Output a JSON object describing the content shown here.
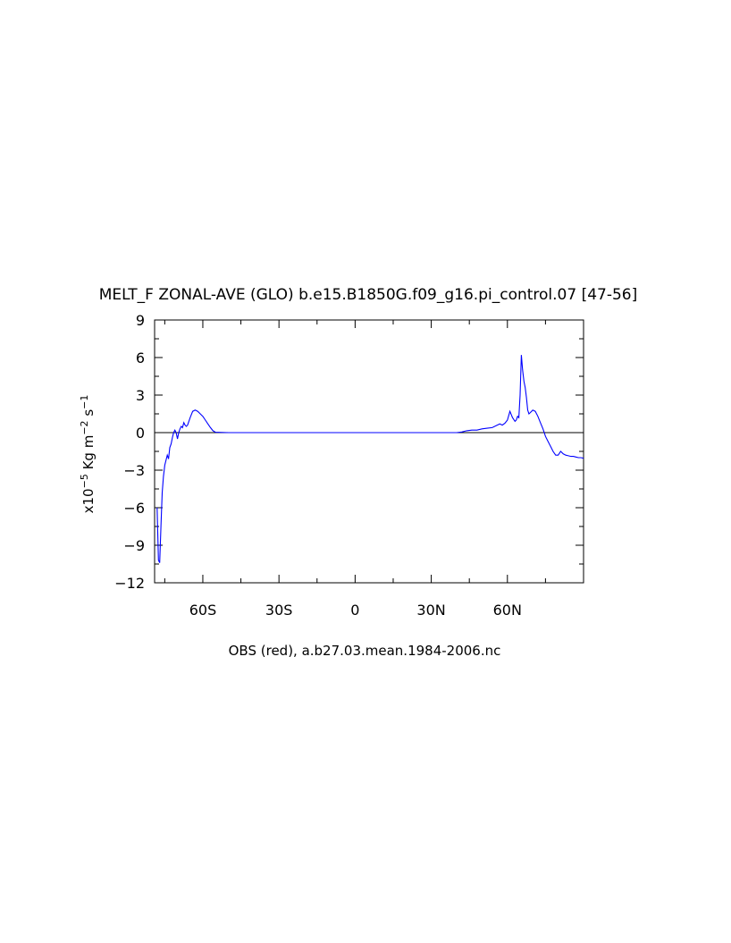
{
  "chart_data": {
    "type": "line",
    "title": "MELT_F ZONAL-AVE (GLO) b.e15.B1850G.f09_g16.pi_control.07 [47-56]",
    "xlabel": "OBS (red), a.b27.03.mean.1984-2006.nc",
    "ylabel": "x10-5 Kg m-2 s-1",
    "xlim": [
      -79,
      90
    ],
    "ylim": [
      -12,
      9
    ],
    "xticks": [
      {
        "value": -60,
        "label": "60S"
      },
      {
        "value": -30,
        "label": "30S"
      },
      {
        "value": 0,
        "label": "0"
      },
      {
        "value": 30,
        "label": "30N"
      },
      {
        "value": 60,
        "label": "60N"
      }
    ],
    "yticks": [
      {
        "value": 9,
        "label": "9"
      },
      {
        "value": 6,
        "label": "6"
      },
      {
        "value": 3,
        "label": "3"
      },
      {
        "value": 0,
        "label": "0"
      },
      {
        "value": -3,
        "label": "-3"
      },
      {
        "value": -6,
        "label": "-6"
      },
      {
        "value": -9,
        "label": "-9"
      },
      {
        "value": -12,
        "label": "-12"
      }
    ],
    "series": [
      {
        "color": "#0000ff",
        "x": [
          -78,
          -77.5,
          -77,
          -76.5,
          -76,
          -75.5,
          -75,
          -74.5,
          -74,
          -73.5,
          -73,
          -72.5,
          -72,
          -71.5,
          -71,
          -70.5,
          -70,
          -69.5,
          -69,
          -68.5,
          -68,
          -67.5,
          -67,
          -66.5,
          -66,
          -65,
          -64,
          -63,
          -62,
          -61,
          -60,
          -59,
          -58,
          -57,
          -56,
          -55,
          -50,
          -40,
          -20,
          0,
          20,
          35,
          40,
          42,
          44,
          46,
          48,
          50,
          52,
          54,
          56,
          57,
          58,
          59,
          60,
          61,
          62,
          63,
          63.5,
          64,
          64.5,
          65,
          65.5,
          66,
          66.5,
          67,
          67.5,
          68,
          68.5,
          69,
          70,
          71,
          72,
          73,
          74,
          75,
          76,
          77,
          78,
          79,
          80,
          81,
          82,
          83,
          84,
          85,
          86,
          87,
          88,
          89,
          90
        ],
        "y": [
          -6.0,
          -10.2,
          -10.4,
          -7.5,
          -4.8,
          -3.5,
          -2.6,
          -2.2,
          -1.8,
          -2.1,
          -1.2,
          -0.9,
          -0.4,
          0.0,
          0.2,
          0.0,
          -0.5,
          0.0,
          0.3,
          0.5,
          0.4,
          0.8,
          0.6,
          0.5,
          0.6,
          1.2,
          1.7,
          1.8,
          1.7,
          1.5,
          1.3,
          1.0,
          0.7,
          0.4,
          0.15,
          0.03,
          0.0,
          0.0,
          0.0,
          0.0,
          0.0,
          0.0,
          0.0,
          0.05,
          0.15,
          0.2,
          0.2,
          0.3,
          0.35,
          0.4,
          0.6,
          0.7,
          0.6,
          0.75,
          1.0,
          1.7,
          1.2,
          0.9,
          1.0,
          1.3,
          1.2,
          3.0,
          6.2,
          5.0,
          4.1,
          3.6,
          2.8,
          1.8,
          1.5,
          1.6,
          1.8,
          1.7,
          1.3,
          0.8,
          0.3,
          -0.3,
          -0.7,
          -1.1,
          -1.5,
          -1.8,
          -1.8,
          -1.5,
          -1.7,
          -1.8,
          -1.85,
          -1.9,
          -1.9,
          -1.95,
          -2.0,
          -2.0,
          -2.05
        ]
      }
    ],
    "zero_line": true,
    "grid": false
  }
}
